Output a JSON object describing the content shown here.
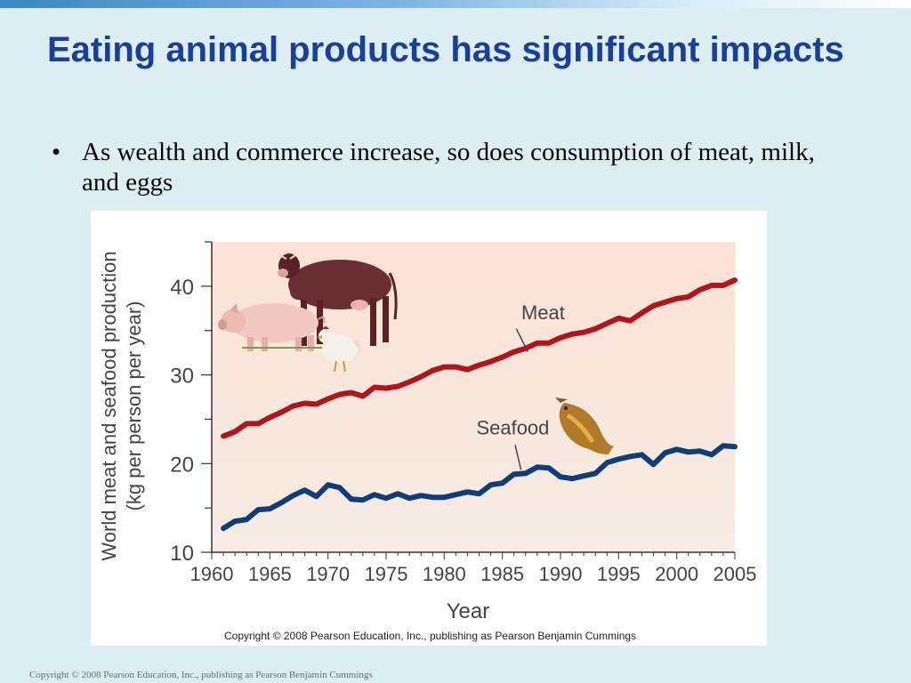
{
  "slide": {
    "title": "Eating animal products has significant impacts",
    "bullet_marker": "•",
    "bullet": "As wealth and commerce increase, so does consumption of meat, milk, and eggs",
    "footer": "Copyright © 2008 Pearson Education, Inc., publishing as Pearson Benjamin Cummings"
  },
  "chart_data": {
    "type": "line",
    "title": "",
    "xlabel": "Year",
    "ylabel_line1": "World meat and seafood production",
    "ylabel_line2": "(kg per person per year)",
    "xlim": [
      1960,
      2005
    ],
    "ylim": [
      10,
      45
    ],
    "xticks": [
      1960,
      1965,
      1970,
      1975,
      1980,
      1985,
      1990,
      1995,
      2000,
      2005
    ],
    "yticks": [
      10,
      20,
      30,
      40
    ],
    "legend": "inline labels",
    "grid": false,
    "copyright": "Copyright © 2008 Pearson Education, Inc., publishing as Pearson Benjamin Cummings",
    "series": [
      {
        "name": "Meat",
        "color": "#b5121b",
        "x": [
          1961,
          1962,
          1963,
          1964,
          1965,
          1966,
          1967,
          1968,
          1969,
          1970,
          1971,
          1972,
          1973,
          1974,
          1975,
          1976,
          1977,
          1978,
          1979,
          1980,
          1981,
          1982,
          1983,
          1984,
          1985,
          1986,
          1987,
          1988,
          1989,
          1990,
          1991,
          1992,
          1993,
          1994,
          1995,
          1996,
          1997,
          1998,
          1999,
          2000,
          2001,
          2002,
          2003,
          2004,
          2005
        ],
        "values": [
          23.1,
          23.6,
          24.5,
          24.5,
          25.2,
          25.8,
          26.5,
          26.8,
          26.7,
          27.3,
          27.8,
          28.0,
          27.6,
          28.6,
          28.5,
          28.7,
          29.2,
          29.8,
          30.5,
          30.9,
          30.9,
          30.6,
          31.1,
          31.5,
          32.0,
          32.6,
          33.0,
          33.6,
          33.6,
          34.2,
          34.6,
          34.8,
          35.2,
          35.8,
          36.4,
          36.1,
          37.0,
          37.8,
          38.2,
          38.6,
          38.8,
          39.6,
          40.1,
          40.1,
          40.7
        ]
      },
      {
        "name": "Seafood",
        "color": "#0f3d7a",
        "x": [
          1961,
          1962,
          1963,
          1964,
          1965,
          1966,
          1967,
          1968,
          1969,
          1970,
          1971,
          1972,
          1973,
          1974,
          1975,
          1976,
          1977,
          1978,
          1979,
          1980,
          1981,
          1982,
          1983,
          1984,
          1985,
          1986,
          1987,
          1988,
          1989,
          1990,
          1991,
          1992,
          1993,
          1994,
          1995,
          1996,
          1997,
          1998,
          1999,
          2000,
          2001,
          2002,
          2003,
          2004,
          2005
        ],
        "values": [
          12.7,
          13.5,
          13.7,
          14.8,
          14.9,
          15.6,
          16.4,
          17.0,
          16.3,
          17.6,
          17.3,
          16.0,
          15.9,
          16.5,
          16.1,
          16.6,
          16.1,
          16.4,
          16.2,
          16.2,
          16.5,
          16.8,
          16.6,
          17.6,
          17.8,
          18.8,
          18.9,
          19.6,
          19.5,
          18.5,
          18.3,
          18.6,
          18.9,
          20.1,
          20.5,
          20.8,
          21.0,
          19.9,
          21.2,
          21.6,
          21.3,
          21.4,
          21.0,
          22.0,
          21.9
        ]
      }
    ],
    "illustrations": [
      "cow-icon",
      "pig-icon",
      "chicken-icon",
      "fish-icon"
    ]
  }
}
